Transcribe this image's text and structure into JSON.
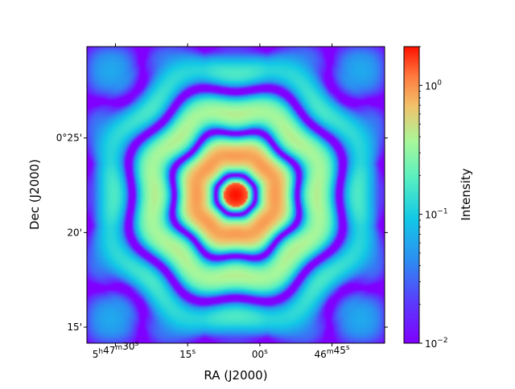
{
  "chart_data": {
    "type": "heatmap",
    "description_scale": "log",
    "xlabel": "RA (J2000)",
    "ylabel": "Dec (J2000)",
    "x_ticks": [
      {
        "h": "5",
        "m": "47",
        "s": "30",
        "label_parts": [
          "5",
          "h",
          "47",
          "m",
          "30",
          "s"
        ],
        "frac": 0.0959
      },
      {
        "h": "",
        "m": "",
        "s": "15",
        "label_parts": [
          "15",
          "s"
        ],
        "frac": 0.3383
      },
      {
        "h": "",
        "m": "",
        "s": "00",
        "label_parts": [
          "00",
          "s"
        ],
        "frac": 0.5808
      },
      {
        "h": "",
        "m": "46",
        "s": "45",
        "label_parts": [
          "46",
          "m",
          "45",
          "s"
        ],
        "frac": 0.8232
      }
    ],
    "y_ticks": [
      {
        "label": "0°25'",
        "frac": 0.6919
      },
      {
        "label": "20'",
        "frac": 0.373
      },
      {
        "label": "15'",
        "frac": 0.0541
      }
    ],
    "colorbar": {
      "label": "Intensity",
      "colormap": "rainbow",
      "scale": "log",
      "range": [
        0.01,
        2.0
      ],
      "ticks": [
        {
          "value": 1.0,
          "base": "10",
          "exp": "0"
        },
        {
          "value": 0.1,
          "base": "10",
          "exp": "−1"
        },
        {
          "value": 0.01,
          "base": "10",
          "exp": "−2"
        }
      ]
    },
    "image": {
      "center_frac": [
        0.5,
        0.5
      ],
      "peak": 2.0,
      "floor": 0.01,
      "pattern": "radial rings with 8-fold modulation, square lattice at corners"
    }
  }
}
